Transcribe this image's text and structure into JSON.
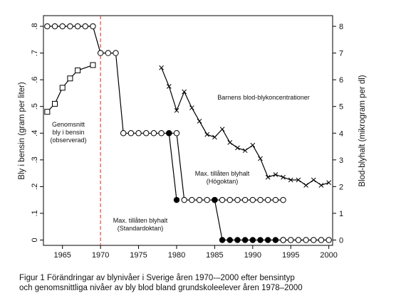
{
  "chart_data": {
    "type": "line",
    "xlim": [
      1962.5,
      2000.5
    ],
    "x_ticks": [
      1965,
      1970,
      1975,
      1980,
      1985,
      1990,
      1995,
      2000
    ],
    "ylim_left": [
      -0.02,
      0.84
    ],
    "y_ticks_left": [
      0,
      0.1,
      0.2,
      0.3,
      0.4,
      0.5,
      0.6,
      0.7,
      0.8
    ],
    "y_tick_labels_left": [
      "0",
      ".1",
      ".2",
      ".3",
      ".4",
      ".5",
      ".6",
      ".7",
      ".8"
    ],
    "ylim_right": [
      -0.2,
      8.4
    ],
    "y_ticks_right": [
      0,
      1,
      2,
      3,
      4,
      5,
      6,
      7,
      8
    ],
    "y_tick_labels_right": [
      "0",
      "1",
      "2",
      "3",
      "4",
      "5",
      "6",
      "7",
      "8"
    ],
    "ylabel_left": "Bly i bensin (gram per liter)",
    "ylabel_right": "Blod-blyhalt (mikrogram per dl)",
    "vline": {
      "x": 1970,
      "color": "#e8473f"
    },
    "series": [
      {
        "axis": "left",
        "marker": "square",
        "x": [
          1963,
          1964,
          1965,
          1966,
          1967,
          1969
        ],
        "y": [
          0.48,
          0.51,
          0.57,
          0.605,
          0.635,
          0.655
        ]
      },
      {
        "axis": "left",
        "marker": "circle-open",
        "x": [
          1963,
          1964,
          1965,
          1966,
          1967,
          1968,
          1969,
          1970,
          1971,
          1972,
          1973,
          1974,
          1975,
          1976,
          1977,
          1978,
          1979,
          1980,
          1981,
          1982,
          1983,
          1984,
          1985,
          1986,
          1987,
          1988,
          1989,
          1990,
          1991,
          1992,
          1993,
          1994
        ],
        "y": [
          0.8,
          0.8,
          0.8,
          0.8,
          0.8,
          0.8,
          0.8,
          0.7,
          0.7,
          0.7,
          0.4,
          0.4,
          0.4,
          0.4,
          0.4,
          0.4,
          0.4,
          0.4,
          0.15,
          0.15,
          0.15,
          0.15,
          0.15,
          0.15,
          0.15,
          0.15,
          0.15,
          0.15,
          0.15,
          0.15,
          0.15,
          0.15
        ]
      },
      {
        "axis": "left",
        "marker": "circle-filled",
        "x": [
          1979,
          1980
        ],
        "y": [
          0.4,
          0.15
        ]
      },
      {
        "axis": "left",
        "marker": "circle-filled",
        "x": [
          1985,
          1986,
          1987,
          1988,
          1989,
          1990,
          1991,
          1992,
          1993,
          1994
        ],
        "y": [
          0.15,
          0.0,
          0.0,
          0.0,
          0.0,
          0.0,
          0.0,
          0.0,
          0.0,
          0.0
        ]
      },
      {
        "axis": "left",
        "marker": "circle-open",
        "x": [
          1994,
          1995,
          1996,
          1997,
          1998,
          1999,
          2000
        ],
        "y": [
          0.0,
          0.0,
          0.0,
          0.0,
          0.0,
          0.0,
          0.0
        ]
      },
      {
        "axis": "right",
        "marker": "x",
        "x": [
          1978,
          1979,
          1980,
          1981,
          1982,
          1983,
          1984,
          1985,
          1986,
          1987,
          1988,
          1989,
          1990,
          1991,
          1992,
          1993,
          1994,
          1995,
          1996,
          1997,
          1998,
          1999,
          2000
        ],
        "y": [
          6.45,
          5.75,
          4.85,
          5.55,
          4.95,
          4.45,
          3.95,
          3.85,
          4.15,
          3.65,
          3.45,
          3.35,
          3.55,
          3.05,
          2.35,
          2.45,
          2.35,
          2.25,
          2.25,
          2.05,
          2.25,
          2.05,
          2.15
        ]
      }
    ],
    "annotations": [
      {
        "lines": [
          "Genomsnitt",
          "bly i bensin",
          "(observerad)"
        ]
      },
      {
        "lines": [
          "Barnens blod-blykoncentrationer"
        ]
      },
      {
        "lines": [
          "Max. tillåten blyhalt",
          "(Högoktan)"
        ]
      },
      {
        "lines": [
          "Max. tillåten blyhalt",
          "(Standardoktan)"
        ]
      }
    ]
  },
  "caption": {
    "line1": "Figur 1 Förändringar av blynivåer i Sverige åren 1970-–2000 efter bensintyp",
    "line2": "och genomsnittliga nivåer av bly blod bland grundskoleelever åren 1978–2000"
  }
}
